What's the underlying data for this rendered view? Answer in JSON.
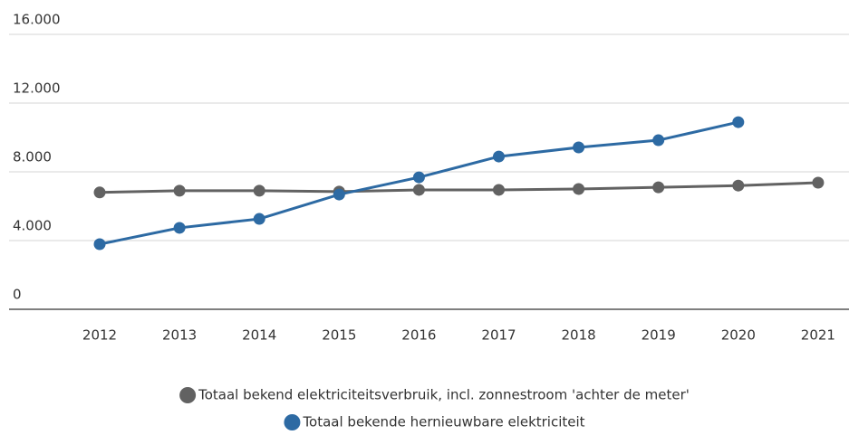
{
  "chart_data": {
    "type": "line",
    "categories": [
      "2012",
      "2013",
      "2014",
      "2015",
      "2016",
      "2017",
      "2018",
      "2019",
      "2020",
      "2021"
    ],
    "series": [
      {
        "name": "Totaal bekend elektriciteitsverbruik, incl. zonnestroom 'achter de meter'",
        "color": "#626262",
        "values": [
          6800,
          6900,
          6900,
          6850,
          6950,
          6950,
          7000,
          7100,
          7200,
          7370
        ]
      },
      {
        "name": "Totaal bekende hernieuwbare elektriciteit",
        "color": "#2d6aa3",
        "values": [
          3790,
          4740,
          5260,
          6680,
          7680,
          8890,
          9420,
          9840,
          10890,
          null
        ]
      }
    ],
    "ylim": [
      0,
      16000
    ],
    "yticks": [
      0,
      {
        "value": 4000,
        "label": "4.000"
      },
      {
        "value": 8000,
        "label": "8.000"
      },
      {
        "value": 12000,
        "label": "12.000"
      },
      {
        "value": 16000,
        "label": "16.000"
      }
    ],
    "grid": true
  }
}
